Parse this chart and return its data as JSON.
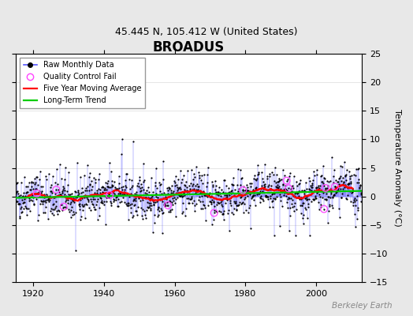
{
  "title": "BROADUS",
  "subtitle": "45.445 N, 105.412 W (United States)",
  "ylabel": "Temperature Anomaly (°C)",
  "watermark": "Berkeley Earth",
  "x_start": 1915,
  "x_end": 2013,
  "xlim_left": 1915,
  "xlim_right": 2013,
  "y_min": -15,
  "y_max": 25,
  "y_ticks": [
    -15,
    -10,
    -5,
    0,
    5,
    10,
    15,
    20,
    25
  ],
  "x_ticks": [
    1920,
    1940,
    1960,
    1980,
    2000
  ],
  "bg_color": "#e8e8e8",
  "plot_bg_color": "#ffffff",
  "raw_line_color": "#5555ff",
  "raw_marker_color": "#000000",
  "qc_fail_color": "#ff44ff",
  "moving_avg_color": "#ff0000",
  "trend_color": "#00cc00",
  "grid_color": "#cccccc",
  "title_fontsize": 12,
  "subtitle_fontsize": 9,
  "label_fontsize": 8,
  "tick_fontsize": 8,
  "seed": 42
}
